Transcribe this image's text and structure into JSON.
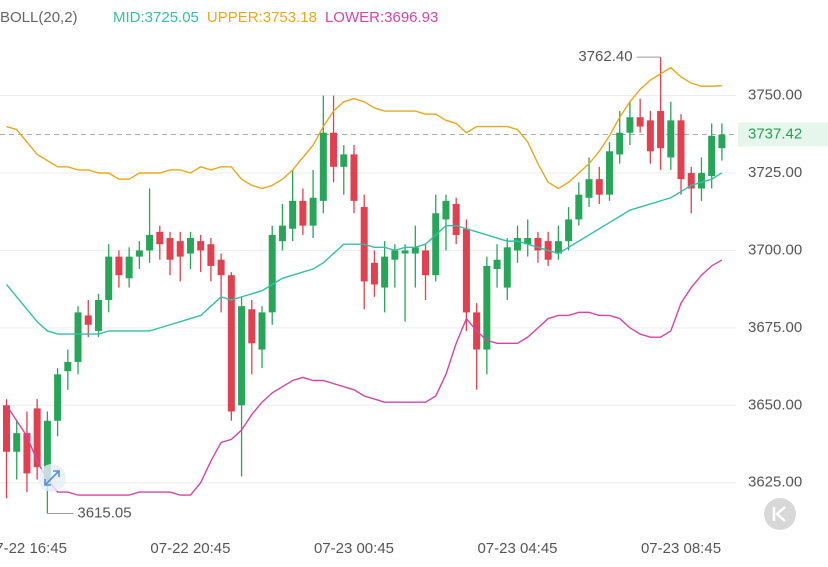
{
  "chart_data": {
    "type": "candlestick",
    "indicator": "BOLL(20,2)",
    "categories": [
      null,
      null,
      "07-22 16:45",
      null,
      null,
      null,
      null,
      null,
      null,
      null,
      null,
      null,
      null,
      null,
      null,
      null,
      null,
      null,
      "07-22 20:45",
      null,
      null,
      null,
      null,
      null,
      null,
      null,
      null,
      null,
      null,
      null,
      null,
      null,
      null,
      null,
      "07-23 00:45",
      null,
      null,
      null,
      null,
      null,
      null,
      null,
      null,
      null,
      null,
      null,
      null,
      null,
      null,
      null,
      "07-23 04:45",
      null,
      null,
      null,
      null,
      null,
      null,
      null,
      null,
      null,
      null,
      null,
      null,
      null,
      null,
      null,
      "07-23 08:45",
      null,
      null,
      null,
      null
    ],
    "open": [
      3650,
      3635,
      3641,
      3649,
      3624,
      3645,
      3661,
      3664,
      3679,
      3674,
      3684,
      3698,
      3691,
      3698,
      3700,
      3706,
      3704,
      3703,
      3699,
      3703,
      3702,
      3697,
      3692,
      3650,
      3681,
      3668,
      3680,
      3703,
      3707,
      3716,
      3708,
      3716,
      3738,
      3727,
      3731,
      3714,
      3696,
      3688,
      3697,
      3699,
      3699,
      3700,
      3692,
      3710,
      3715,
      3707,
      3680,
      3668,
      3694,
      3688,
      3700,
      3702,
      3704,
      3703,
      3699,
      3703,
      3710,
      3717,
      3723,
      3718,
      3731,
      3738,
      3743,
      3742,
      3745,
      3730,
      3742,
      3725,
      3720,
      3724,
      3733
    ],
    "high": [
      3652,
      3645,
      3648,
      3652,
      3648,
      3662,
      3668,
      3682,
      3684,
      3686,
      3702,
      3700,
      3701,
      3703,
      3720,
      3708,
      3706,
      3706,
      3706,
      3705,
      3704,
      3699,
      3693,
      3685,
      3684,
      3682,
      3708,
      3715,
      3726,
      3720,
      3726,
      3750,
      3750,
      3734,
      3734,
      3718,
      3700,
      3703,
      3702,
      3702,
      3708,
      3702,
      3718,
      3718,
      3717,
      3710,
      3683,
      3698,
      3702,
      3704,
      3708,
      3710,
      3706,
      3706,
      3708,
      3714,
      3722,
      3730,
      3727,
      3735,
      3745,
      3748,
      3749,
      3745,
      3762.4,
      3748,
      3744,
      3727,
      3730,
      3741,
      3741
    ],
    "low": [
      3620,
      3626,
      3622,
      3626,
      3615.05,
      3640,
      3655,
      3660,
      3672,
      3672,
      3680,
      3688,
      3688,
      3694,
      3696,
      3697,
      3692,
      3690,
      3694,
      3693,
      3690,
      3680,
      3645,
      3627,
      3660,
      3662,
      3676,
      3700,
      3703,
      3705,
      3704,
      3712,
      3722,
      3718,
      3712,
      3681,
      3685,
      3680,
      3688,
      3677,
      3688,
      3684,
      3690,
      3700,
      3702,
      3674,
      3655,
      3660,
      3688,
      3684,
      3696,
      3698,
      3696,
      3695,
      3697,
      3700,
      3708,
      3714,
      3715,
      3716,
      3728,
      3734,
      3738,
      3728,
      3726,
      3726,
      3718,
      3712,
      3716,
      3720,
      3729
    ],
    "close": [
      3635,
      3641,
      3628,
      3630,
      3645,
      3660,
      3664,
      3680,
      3676,
      3684,
      3698,
      3692,
      3698,
      3700,
      3705,
      3702,
      3697,
      3698,
      3704,
      3700,
      3695,
      3692,
      3648,
      3682,
      3670,
      3680,
      3705,
      3708,
      3716,
      3708,
      3717,
      3738,
      3727,
      3731,
      3716,
      3690,
      3689,
      3698,
      3700,
      3700,
      3701,
      3692,
      3712,
      3716,
      3705,
      3680,
      3668,
      3695,
      3697,
      3701,
      3704,
      3704,
      3700,
      3697,
      3703,
      3710,
      3718,
      3723,
      3718,
      3732,
      3738,
      3743,
      3740,
      3732,
      3733,
      3742,
      3723,
      3720,
      3725,
      3737,
      3737.42
    ],
    "up_color": "#27a65a",
    "down_color": "#e0404f",
    "series": [
      {
        "name": "MID:3725.05",
        "color": "#33bfa7",
        "values": [
          3689,
          3685,
          3681,
          3677,
          3674,
          3673,
          3673,
          3673,
          3673,
          3673,
          3674,
          3674,
          3674,
          3674,
          3674,
          3675,
          3676,
          3677,
          3678,
          3679,
          3682,
          3685,
          3684,
          3685,
          3686,
          3687,
          3689,
          3691,
          3692,
          3693,
          3694,
          3696,
          3699,
          3702,
          3702,
          3702,
          3701,
          3701,
          3700,
          3701,
          3701,
          3702,
          3705,
          3708,
          3708,
          3707,
          3706,
          3705,
          3704,
          3703,
          3703,
          3702,
          3701,
          3700,
          3699,
          3701,
          3703,
          3705,
          3707,
          3709,
          3711,
          3713,
          3714,
          3715,
          3716,
          3717,
          3719,
          3721,
          3722,
          3723,
          3725.05
        ]
      },
      {
        "name": "UPPER:3753.18",
        "color": "#e9a81a",
        "values": [
          3740,
          3739,
          3735,
          3731,
          3729,
          3727,
          3727,
          3726,
          3726,
          3725,
          3725,
          3723,
          3723,
          3725,
          3725,
          3725,
          3726,
          3726,
          3725,
          3727,
          3726,
          3727,
          3727,
          3723,
          3721,
          3720,
          3721,
          3723,
          3726,
          3730,
          3734,
          3740,
          3745,
          3748,
          3749,
          3748,
          3746,
          3745,
          3745,
          3745,
          3745,
          3744,
          3744,
          3742,
          3741,
          3738,
          3740,
          3740,
          3740,
          3740,
          3739,
          3735,
          3728,
          3722,
          3720,
          3722,
          3725,
          3728,
          3732,
          3737,
          3743,
          3748,
          3752,
          3755,
          3757,
          3759,
          3756,
          3754,
          3753,
          3753,
          3753.18
        ]
      },
      {
        "name": "LOWER:3696.93",
        "color": "#d345a5",
        "values": [
          3650,
          3645,
          3640,
          3632,
          3626,
          3622,
          3622,
          3621,
          3621,
          3621,
          3621,
          3621,
          3621,
          3622,
          3622,
          3622,
          3622,
          3621,
          3621,
          3625,
          3632,
          3638,
          3639,
          3642,
          3647,
          3651,
          3654,
          3656,
          3658,
          3659,
          3658,
          3658,
          3657,
          3656,
          3655,
          3653,
          3652,
          3651,
          3651,
          3651,
          3651,
          3651,
          3653,
          3660,
          3670,
          3678,
          3674,
          3671,
          3670,
          3670,
          3670,
          3672,
          3675,
          3678,
          3679,
          3679,
          3680,
          3680,
          3679,
          3679,
          3678,
          3675,
          3673,
          3672,
          3672,
          3674,
          3683,
          3688,
          3692,
          3695,
          3696.93
        ]
      }
    ],
    "ylim": [
      3610.06,
      3780.85
    ],
    "yticks": [
      {
        "value": 3625,
        "label": "3625.00"
      },
      {
        "value": 3650,
        "label": "3650.00"
      },
      {
        "value": 3675,
        "label": "3675.00"
      },
      {
        "value": 3700,
        "label": "3700.00"
      },
      {
        "value": 3725,
        "label": "3725.00"
      },
      {
        "value": 3750,
        "label": "3750.00"
      }
    ],
    "grid": true,
    "current_price": 3737.42,
    "max_annotation": {
      "value": 3762.4,
      "label": "3762.40"
    },
    "min_annotation": 3615.05
  }
}
